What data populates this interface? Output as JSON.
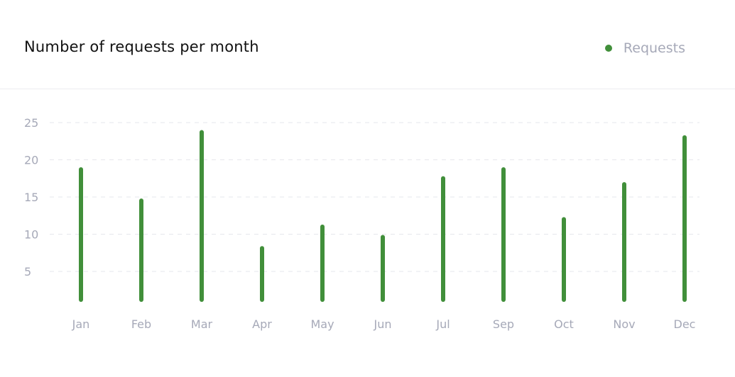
{
  "card": {
    "title": "Number of requests per month"
  },
  "legend": {
    "label": "Requests"
  },
  "colors": {
    "series": "#418f3a",
    "grid": "#e6e7ec",
    "axis_text": "#a6a9b8"
  },
  "chart_data": {
    "type": "bar",
    "title": "Number of requests per month",
    "categories": [
      "Jan",
      "Feb",
      "Mar",
      "Apr",
      "May",
      "Jun",
      "Jul",
      "Sep",
      "Oct",
      "Nov",
      "Dec"
    ],
    "series": [
      {
        "name": "Requests",
        "values": [
          19,
          14.8,
          24,
          8.4,
          11.3,
          9.9,
          17.8,
          19,
          12.3,
          17,
          23.3
        ]
      }
    ],
    "yticks": [
      5,
      10,
      15,
      20,
      25
    ],
    "ylim": [
      1,
      25.5
    ],
    "grid": "horizontal-dashed",
    "legend_position": "top-right"
  }
}
